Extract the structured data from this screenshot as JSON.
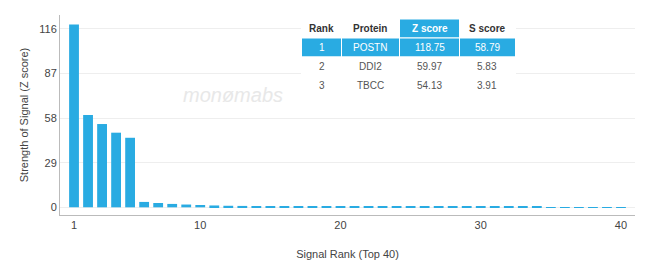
{
  "chart_data": {
    "type": "bar",
    "xlabel": "Signal Rank (Top 40)",
    "ylabel": "Strength of Signal (Z score)",
    "x": [
      1,
      2,
      3,
      4,
      5,
      6,
      7,
      8,
      9,
      10,
      11,
      12,
      13,
      14,
      15,
      16,
      17,
      18,
      19,
      20,
      21,
      22,
      23,
      24,
      25,
      26,
      27,
      28,
      29,
      30,
      31,
      32,
      33,
      34,
      35,
      36,
      37,
      38,
      39,
      40
    ],
    "values": [
      118.75,
      59.97,
      54.13,
      48.5,
      45.2,
      3.5,
      2.8,
      2.2,
      1.8,
      1.5,
      1.2,
      1.0,
      0.9,
      0.8,
      0.75,
      0.7,
      0.65,
      0.6,
      0.55,
      0.5,
      0.48,
      0.45,
      0.43,
      0.41,
      0.39,
      0.37,
      0.35,
      0.33,
      0.31,
      0.29,
      0.27,
      0.25,
      0.23,
      0.21,
      0.19,
      0.17,
      0.15,
      0.13,
      0.11,
      0.09
    ],
    "color": "#29ABE2",
    "xlim": [
      0,
      41
    ],
    "xticks": [
      1,
      10,
      20,
      30,
      40
    ],
    "ylim": [
      -5,
      125
    ],
    "yticks": [
      0,
      29,
      58,
      87,
      116
    ],
    "grid": true,
    "annotations": [
      {
        "text": "monømabs",
        "color": "#e8e8e8"
      }
    ],
    "table": {
      "headers": [
        "Rank",
        "Protein",
        "Z score",
        "S score"
      ],
      "rows": [
        [
          "1",
          "POSTN",
          "118.75",
          "58.79"
        ],
        [
          "2",
          "DDI2",
          "59.97",
          "5.83"
        ],
        [
          "3",
          "TBCC",
          "54.13",
          "3.91"
        ]
      ],
      "color": "#29ABE2",
      "highlight_column": "Z score"
    }
  }
}
